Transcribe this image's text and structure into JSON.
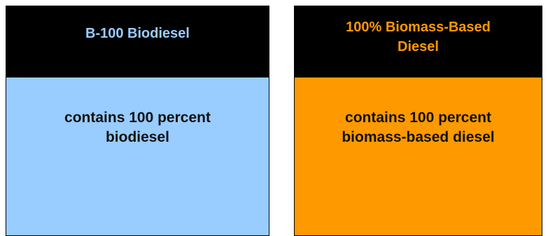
{
  "colors": {
    "header_background": "#000000",
    "left_body": "#99ccff",
    "left_title": "#99ccff",
    "right_body": "#ff9900",
    "right_title": "#ff9900",
    "body_text": "#111111"
  },
  "cards": [
    {
      "title": "B-100 Biodiesel",
      "body_line_1": "contains 100 percent",
      "body_line_2": "biodiesel"
    },
    {
      "title_line_1": "100% Biomass-Based",
      "title_line_2": "Diesel",
      "body_line_1": "contains 100 percent",
      "body_line_2": "biomass-based diesel"
    }
  ]
}
